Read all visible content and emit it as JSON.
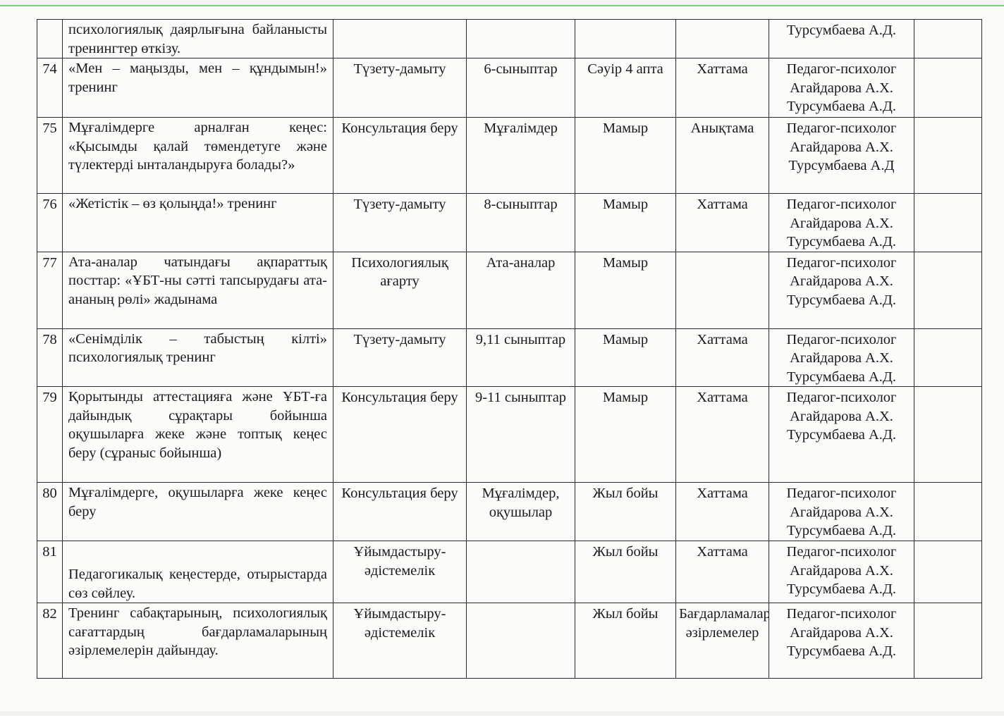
{
  "rows": [
    {
      "num": "",
      "desc": "психологиялық даярлығына байланысты тренингтер өткізу.",
      "type": "",
      "audience": "",
      "date": "",
      "result": "",
      "responsible": [
        "Турсумбаева А.Д."
      ],
      "note": ""
    },
    {
      "num": "74",
      "desc": "«Мен – маңызды, мен – құндымын!» тренинг",
      "type": "Түзету-дамыту",
      "audience": "6-сыныптар",
      "date": "Сәуір 4 апта",
      "result": "Хаттама",
      "responsible": [
        "Педагог-психолог",
        "Агайдарова А.Х.",
        "Турсумбаева А.Д."
      ],
      "note": ""
    },
    {
      "num": "75",
      "desc": "Мұғалімдерге арналған кеңес: «Қысымды қалай төмендетуге және түлектерді ынталандыруға болады?»",
      "type": "Консультация беру",
      "audience": "Мұғалімдер",
      "date": "Мамыр",
      "result": "Анықтама",
      "responsible": [
        "Педагог-психолог",
        "Агайдарова А.Х.",
        "Турсумбаева А.Д"
      ],
      "note": ""
    },
    {
      "num": "76",
      "desc": "«Жетістік – өз қолыңда!» тренинг",
      "type": "Түзету-дамыту",
      "audience": "8-сыныптар",
      "date": "Мамыр",
      "result": "Хаттама",
      "responsible": [
        "Педагог-психолог",
        "Агайдарова А.Х.",
        "Турсумбаева А.Д."
      ],
      "note": ""
    },
    {
      "num": "77",
      "desc": "Ата-аналар чатындағы ақпараттық посттар: «ҰБТ-ны сәтті тапсырудағы ата-ананың рөлі» жадынама",
      "type": "Психологиялық ағарту",
      "audience": "Ата-аналар",
      "date": "Мамыр",
      "result": "",
      "responsible": [
        "Педагог-психолог",
        "Агайдарова А.Х.",
        "Турсумбаева А.Д."
      ],
      "note": ""
    },
    {
      "num": "78",
      "desc": "«Сенімділік – табыстың кілті» психологиялық тренинг",
      "type": "Түзету-дамыту",
      "audience": "9,11 сыныптар",
      "date": "Мамыр",
      "result": "Хаттама",
      "responsible": [
        "Педагог-психолог",
        "Агайдарова А.Х.",
        "Турсумбаева А.Д."
      ],
      "note": ""
    },
    {
      "num": "79",
      "desc": "Қорытынды аттестацияға және ҰБТ-ға дайындық сұрақтары бойынша оқушыларға жеке және топтық кеңес беру (сұраныс бойынша)",
      "type": "Консультация беру",
      "audience": "9-11 сыныптар",
      "date": "Мамыр",
      "result": "Хаттама",
      "responsible": [
        "Педагог-психолог",
        "Агайдарова А.Х.",
        "Турсумбаева А.Д."
      ],
      "note": ""
    },
    {
      "num": "80",
      "desc": "Мұғалімдерге, оқушыларға жеке кеңес беру",
      "type": "Консультация беру",
      "audience": "Мұғалімдер, оқушылар",
      "date": "Жыл бойы",
      "result": "Хаттама",
      "responsible": [
        "Педагог-психолог",
        "Агайдарова А.Х.",
        "Турсумбаева А.Д."
      ],
      "note": ""
    },
    {
      "num": "81",
      "desc": "Педагогикалық кеңестерде, отырыстарда сөз сөйлеу.",
      "type": "Ұйымдастыру-әдістемелік",
      "audience": "",
      "date": "Жыл бойы",
      "result": "Хаттама",
      "responsible": [
        "Педагог-психолог",
        "Агайдарова А.Х.",
        "Турсумбаева А.Д."
      ],
      "note": ""
    },
    {
      "num": "82",
      "desc": "Тренинг сабақтарының, психологиялық сағаттардың бағдарламаларының әзірлемелерін дайындау.",
      "type": "Ұйымдастыру-әдістемелік",
      "audience": "",
      "date": "Жыл бойы",
      "result": "Бағдарламалар, әзірлемелер",
      "responsible": [
        "Педагог-психолог",
        "Агайдарова А.Х.",
        "Турсумбаева А.Д."
      ],
      "note": ""
    }
  ]
}
